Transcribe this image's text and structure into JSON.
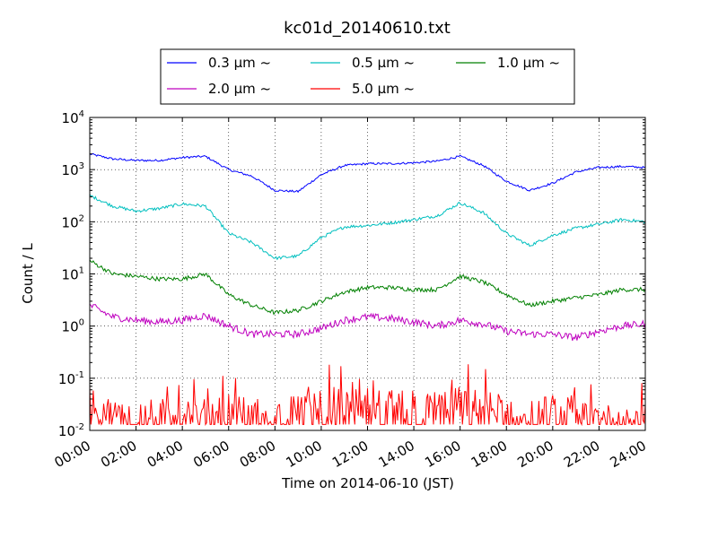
{
  "chart_data": {
    "type": "line",
    "title": "kc01d_20140610.txt",
    "xlabel": "Time on 2014-06-10 (JST)",
    "ylabel": "Count / L",
    "y_scale": "log",
    "ylim": [
      0.01,
      10000
    ],
    "xlim": [
      "00:00",
      "24:00"
    ],
    "x_tick_labels": [
      "00:00",
      "02:00",
      "04:00",
      "06:00",
      "08:00",
      "10:00",
      "12:00",
      "14:00",
      "16:00",
      "18:00",
      "20:00",
      "22:00",
      "24:00"
    ],
    "y_tick_labels": [
      {
        "base": "10",
        "exp": "-2"
      },
      {
        "base": "10",
        "exp": "-1"
      },
      {
        "base": "10",
        "exp": "0"
      },
      {
        "base": "10",
        "exp": "1"
      },
      {
        "base": "10",
        "exp": "2"
      },
      {
        "base": "10",
        "exp": "3"
      },
      {
        "base": "10",
        "exp": "4"
      }
    ],
    "grid": true,
    "legend_position": "above plot",
    "x": [
      "00:00",
      "01:00",
      "02:00",
      "03:00",
      "04:00",
      "05:00",
      "06:00",
      "07:00",
      "08:00",
      "09:00",
      "10:00",
      "11:00",
      "12:00",
      "13:00",
      "14:00",
      "15:00",
      "16:00",
      "17:00",
      "18:00",
      "19:00",
      "20:00",
      "21:00",
      "22:00",
      "23:00",
      "24:00"
    ],
    "series": [
      {
        "name": "0.3 μm ~",
        "color": "#0000ff",
        "noise": 0.02,
        "values": [
          2000,
          1600,
          1500,
          1500,
          1700,
          1800,
          1000,
          750,
          400,
          380,
          800,
          1200,
          1300,
          1300,
          1350,
          1450,
          1800,
          1200,
          600,
          400,
          550,
          900,
          1100,
          1150,
          1100
        ]
      },
      {
        "name": "0.5 μm ~",
        "color": "#00bfbf",
        "noise": 0.03,
        "values": [
          320,
          200,
          160,
          180,
          220,
          200,
          60,
          40,
          20,
          22,
          50,
          80,
          85,
          95,
          110,
          130,
          230,
          150,
          60,
          35,
          55,
          75,
          90,
          110,
          100
        ]
      },
      {
        "name": "1.0 μm ~",
        "color": "#008000",
        "noise": 0.04,
        "values": [
          18,
          10,
          9,
          8,
          8,
          10,
          4,
          2.5,
          1.8,
          2.0,
          3.0,
          4.5,
          5.5,
          5.5,
          5.0,
          5.0,
          9.0,
          7.0,
          4.0,
          2.5,
          3.0,
          3.5,
          4.0,
          5.0,
          5.0
        ]
      },
      {
        "name": "2.0 μm ~",
        "color": "#bf00bf",
        "noise": 0.07,
        "values": [
          2.5,
          1.5,
          1.3,
          1.2,
          1.3,
          1.6,
          1.0,
          0.7,
          0.7,
          0.7,
          0.9,
          1.3,
          1.5,
          1.4,
          1.2,
          1.0,
          1.3,
          1.1,
          0.8,
          0.7,
          0.7,
          0.6,
          0.8,
          1.0,
          1.1
        ]
      },
      {
        "name": "5.0 μm ~",
        "color": "#ff0000",
        "noise": 0.3,
        "values": [
          0.04,
          0.02,
          0.02,
          0.02,
          0.025,
          0.02,
          0.03,
          0.02,
          0.02,
          0.025,
          0.03,
          0.035,
          0.03,
          0.03,
          0.03,
          0.03,
          0.035,
          0.03,
          0.025,
          0.02,
          0.025,
          0.02,
          0.02,
          0.02,
          0.025
        ]
      }
    ]
  }
}
